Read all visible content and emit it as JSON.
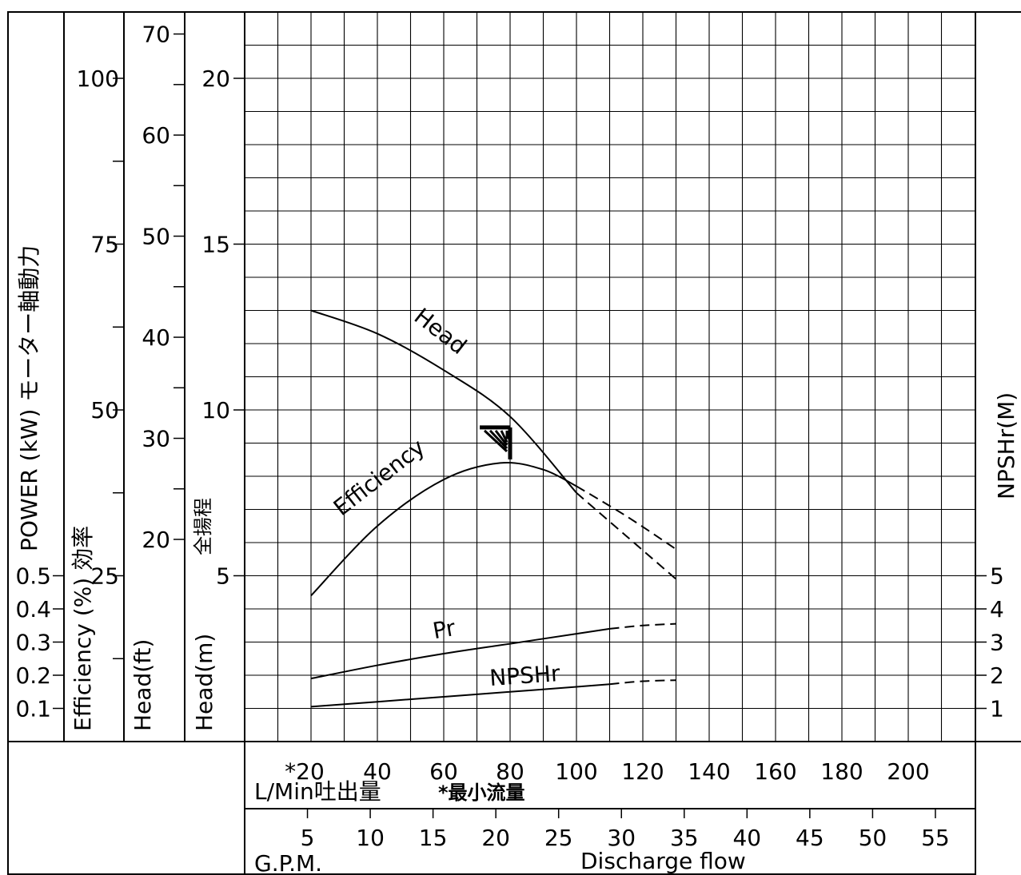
{
  "chart_data": {
    "type": "line",
    "x_axis": {
      "lpm_ticks": [
        "*20",
        "40",
        "60",
        "80",
        "100",
        "120",
        "140",
        "160",
        "180",
        "200"
      ],
      "lpm_label": "L/Min吐出量",
      "min_flow_note": "*最小流量",
      "gpm_ticks": [
        "5",
        "10",
        "15",
        "20",
        "25",
        "30",
        "35",
        "40",
        "45",
        "50",
        "55"
      ],
      "gpm_label": "G.P.M.",
      "discharge_label": "Discharge flow",
      "range_lpm": [
        0,
        220
      ]
    },
    "axes": {
      "power": {
        "title": "POWER (kW) モーター軸動力",
        "ticks": [
          "0.1",
          "0.2",
          "0.3",
          "0.4",
          "0.5"
        ]
      },
      "efficiency": {
        "title": "Efficiency (%) 効率",
        "ticks": [
          "25",
          "50",
          "75",
          "100"
        ]
      },
      "head_ft": {
        "title": "Head(ft)",
        "ticks": [
          "20",
          "30",
          "40",
          "50",
          "60",
          "70"
        ]
      },
      "head_m": {
        "title": "Head(m)",
        "title_jp": "全揚程",
        "ticks": [
          "5",
          "10",
          "15",
          "20"
        ],
        "range": [
          0,
          22
        ]
      },
      "npshr": {
        "title": "NPSHr(M)",
        "ticks": [
          "1",
          "2",
          "3",
          "4",
          "5"
        ]
      }
    },
    "series": [
      {
        "name": "Head",
        "solid": [
          [
            20,
            13.0
          ],
          [
            40,
            12.3
          ],
          [
            60,
            11.2
          ],
          [
            80,
            9.8
          ],
          [
            100,
            7.5
          ]
        ],
        "dashed": [
          [
            100,
            7.5
          ],
          [
            115,
            6.2
          ],
          [
            130,
            4.9
          ]
        ]
      },
      {
        "name": "Efficiency",
        "solid": [
          [
            20,
            4.4
          ],
          [
            40,
            6.5
          ],
          [
            60,
            7.9
          ],
          [
            77,
            8.4
          ],
          [
            90,
            8.2
          ],
          [
            100,
            7.7
          ]
        ],
        "dashed": [
          [
            100,
            7.7
          ],
          [
            115,
            6.8
          ],
          [
            130,
            5.8
          ]
        ]
      },
      {
        "name": "Pr",
        "solid": [
          [
            20,
            1.9
          ],
          [
            40,
            2.3
          ],
          [
            60,
            2.65
          ],
          [
            80,
            2.95
          ],
          [
            100,
            3.25
          ],
          [
            110,
            3.4
          ]
        ],
        "dashed": [
          [
            110,
            3.4
          ],
          [
            120,
            3.5
          ],
          [
            130,
            3.55
          ]
        ]
      },
      {
        "name": "NPSHr",
        "solid": [
          [
            20,
            1.05
          ],
          [
            40,
            1.2
          ],
          [
            60,
            1.35
          ],
          [
            80,
            1.5
          ],
          [
            100,
            1.65
          ],
          [
            110,
            1.73
          ]
        ],
        "dashed": [
          [
            110,
            1.73
          ],
          [
            120,
            1.82
          ],
          [
            130,
            1.85
          ]
        ]
      }
    ],
    "duty_point": [
      80,
      9.4
    ],
    "grid": true
  }
}
